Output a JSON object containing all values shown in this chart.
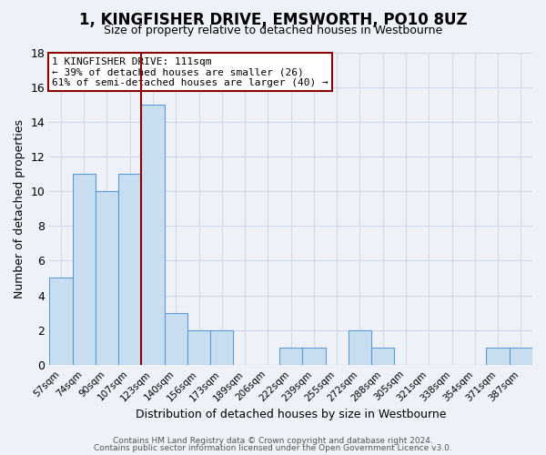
{
  "title": "1, KINGFISHER DRIVE, EMSWORTH, PO10 8UZ",
  "subtitle": "Size of property relative to detached houses in Westbourne",
  "xlabel": "Distribution of detached houses by size in Westbourne",
  "ylabel": "Number of detached properties",
  "bin_labels": [
    "57sqm",
    "74sqm",
    "90sqm",
    "107sqm",
    "123sqm",
    "140sqm",
    "156sqm",
    "173sqm",
    "189sqm",
    "206sqm",
    "222sqm",
    "239sqm",
    "255sqm",
    "272sqm",
    "288sqm",
    "305sqm",
    "321sqm",
    "338sqm",
    "354sqm",
    "371sqm",
    "387sqm"
  ],
  "bar_heights": [
    5,
    11,
    10,
    11,
    15,
    3,
    2,
    2,
    0,
    0,
    1,
    1,
    0,
    2,
    1,
    0,
    0,
    0,
    0,
    1,
    1
  ],
  "bar_color": "#c9ddf0",
  "bar_edge_color": "#5b9bd5",
  "property_line_x": 3.5,
  "property_line_color": "#8b0000",
  "ylim": [
    0,
    18
  ],
  "yticks": [
    0,
    2,
    4,
    6,
    8,
    10,
    12,
    14,
    16,
    18
  ],
  "annotation_title": "1 KINGFISHER DRIVE: 111sqm",
  "annotation_line1": "← 39% of detached houses are smaller (26)",
  "annotation_line2": "61% of semi-detached houses are larger (40) →",
  "annotation_box_color": "#ffffff",
  "annotation_box_edge": "#8b0000",
  "footer_line1": "Contains HM Land Registry data © Crown copyright and database right 2024.",
  "footer_line2": "Contains public sector information licensed under the Open Government Licence v3.0.",
  "grid_color": "#d0d8e8",
  "background_color": "#eef2f8",
  "title_fontsize": 12,
  "subtitle_fontsize": 9,
  "xlabel_fontsize": 9,
  "ylabel_fontsize": 9
}
